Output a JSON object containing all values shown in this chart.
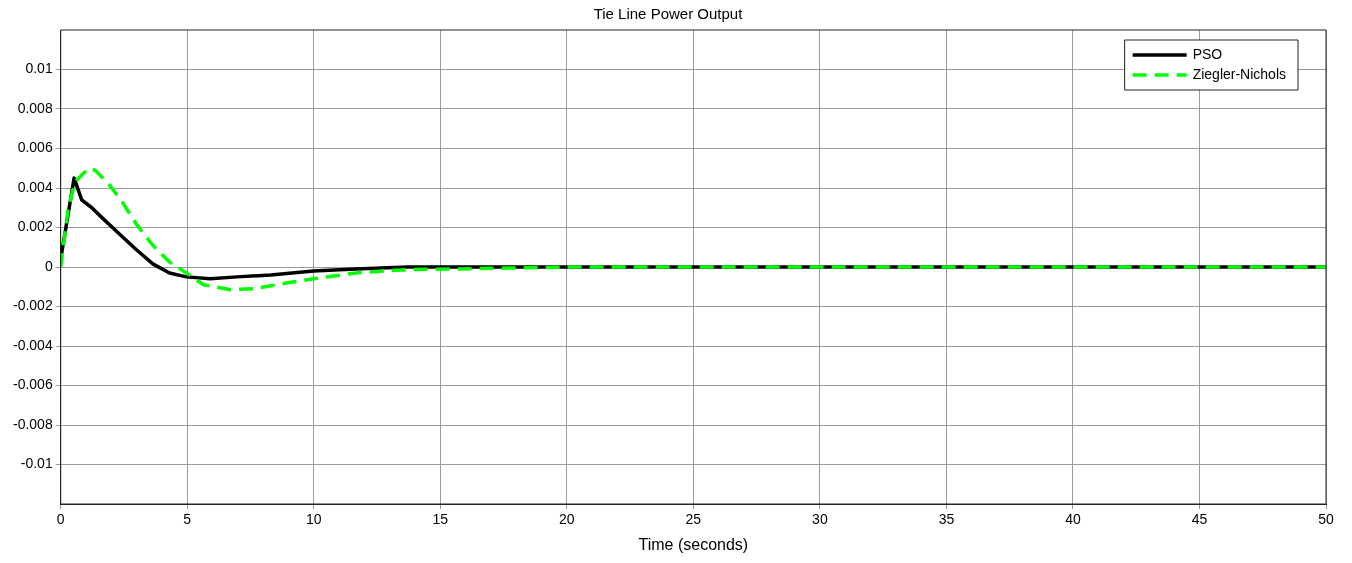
{
  "chart_data": {
    "type": "line",
    "title": "Tie Line Power Output",
    "xlabel": "Time (seconds)",
    "xlim": [
      0,
      50
    ],
    "xticks": [
      0,
      5,
      10,
      15,
      20,
      25,
      30,
      35,
      40,
      45,
      50
    ],
    "ylim": [
      -0.012,
      0.012
    ],
    "yticks": [
      -0.01,
      -0.008,
      -0.006,
      -0.004,
      -0.002,
      0,
      0.002,
      0.004,
      0.006,
      0.008,
      0.01
    ],
    "grid": true,
    "legend": "top right",
    "marker": "none",
    "series": [
      {
        "name": "PSO",
        "color": "#000000",
        "line_style": "solid",
        "x": [
          0,
          0.53,
          0.83,
          1.23,
          1.63,
          2.3,
          2.97,
          3.64,
          4.3,
          4.97,
          5.9,
          6.98,
          8.3,
          9.99,
          11.66,
          13.7,
          15,
          20,
          30,
          40,
          50
        ],
        "values": [
          0.0004,
          0.0045,
          0.0034,
          0.003,
          0.0025,
          0.0017,
          0.0009,
          0.00016,
          -0.0003,
          -0.0005,
          -0.0006,
          -0.0005,
          -0.0004,
          -0.0002,
          -0.0001,
          0,
          0,
          0,
          0,
          0,
          0
        ]
      },
      {
        "name": "Ziegler-Nichols",
        "color": "#00ff00",
        "line_style": "dashed",
        "x": [
          0,
          0.29,
          0.56,
          1.1,
          1.36,
          1.9,
          2.43,
          2.97,
          3.64,
          4.3,
          4.97,
          5.64,
          6.71,
          7.65,
          8.98,
          9.99,
          11.66,
          13.7,
          15.67,
          20,
          30,
          40,
          50
        ],
        "values": [
          0,
          0.0029,
          0.0043,
          0.005,
          0.0049,
          0.0042,
          0.0033,
          0.0022,
          0.0011,
          0.00025,
          -0.0003,
          -0.0009,
          -0.00115,
          -0.0011,
          -0.0008,
          -0.0006,
          -0.0003,
          -0.00013,
          -0.0001,
          0,
          0,
          0,
          0
        ]
      }
    ]
  }
}
